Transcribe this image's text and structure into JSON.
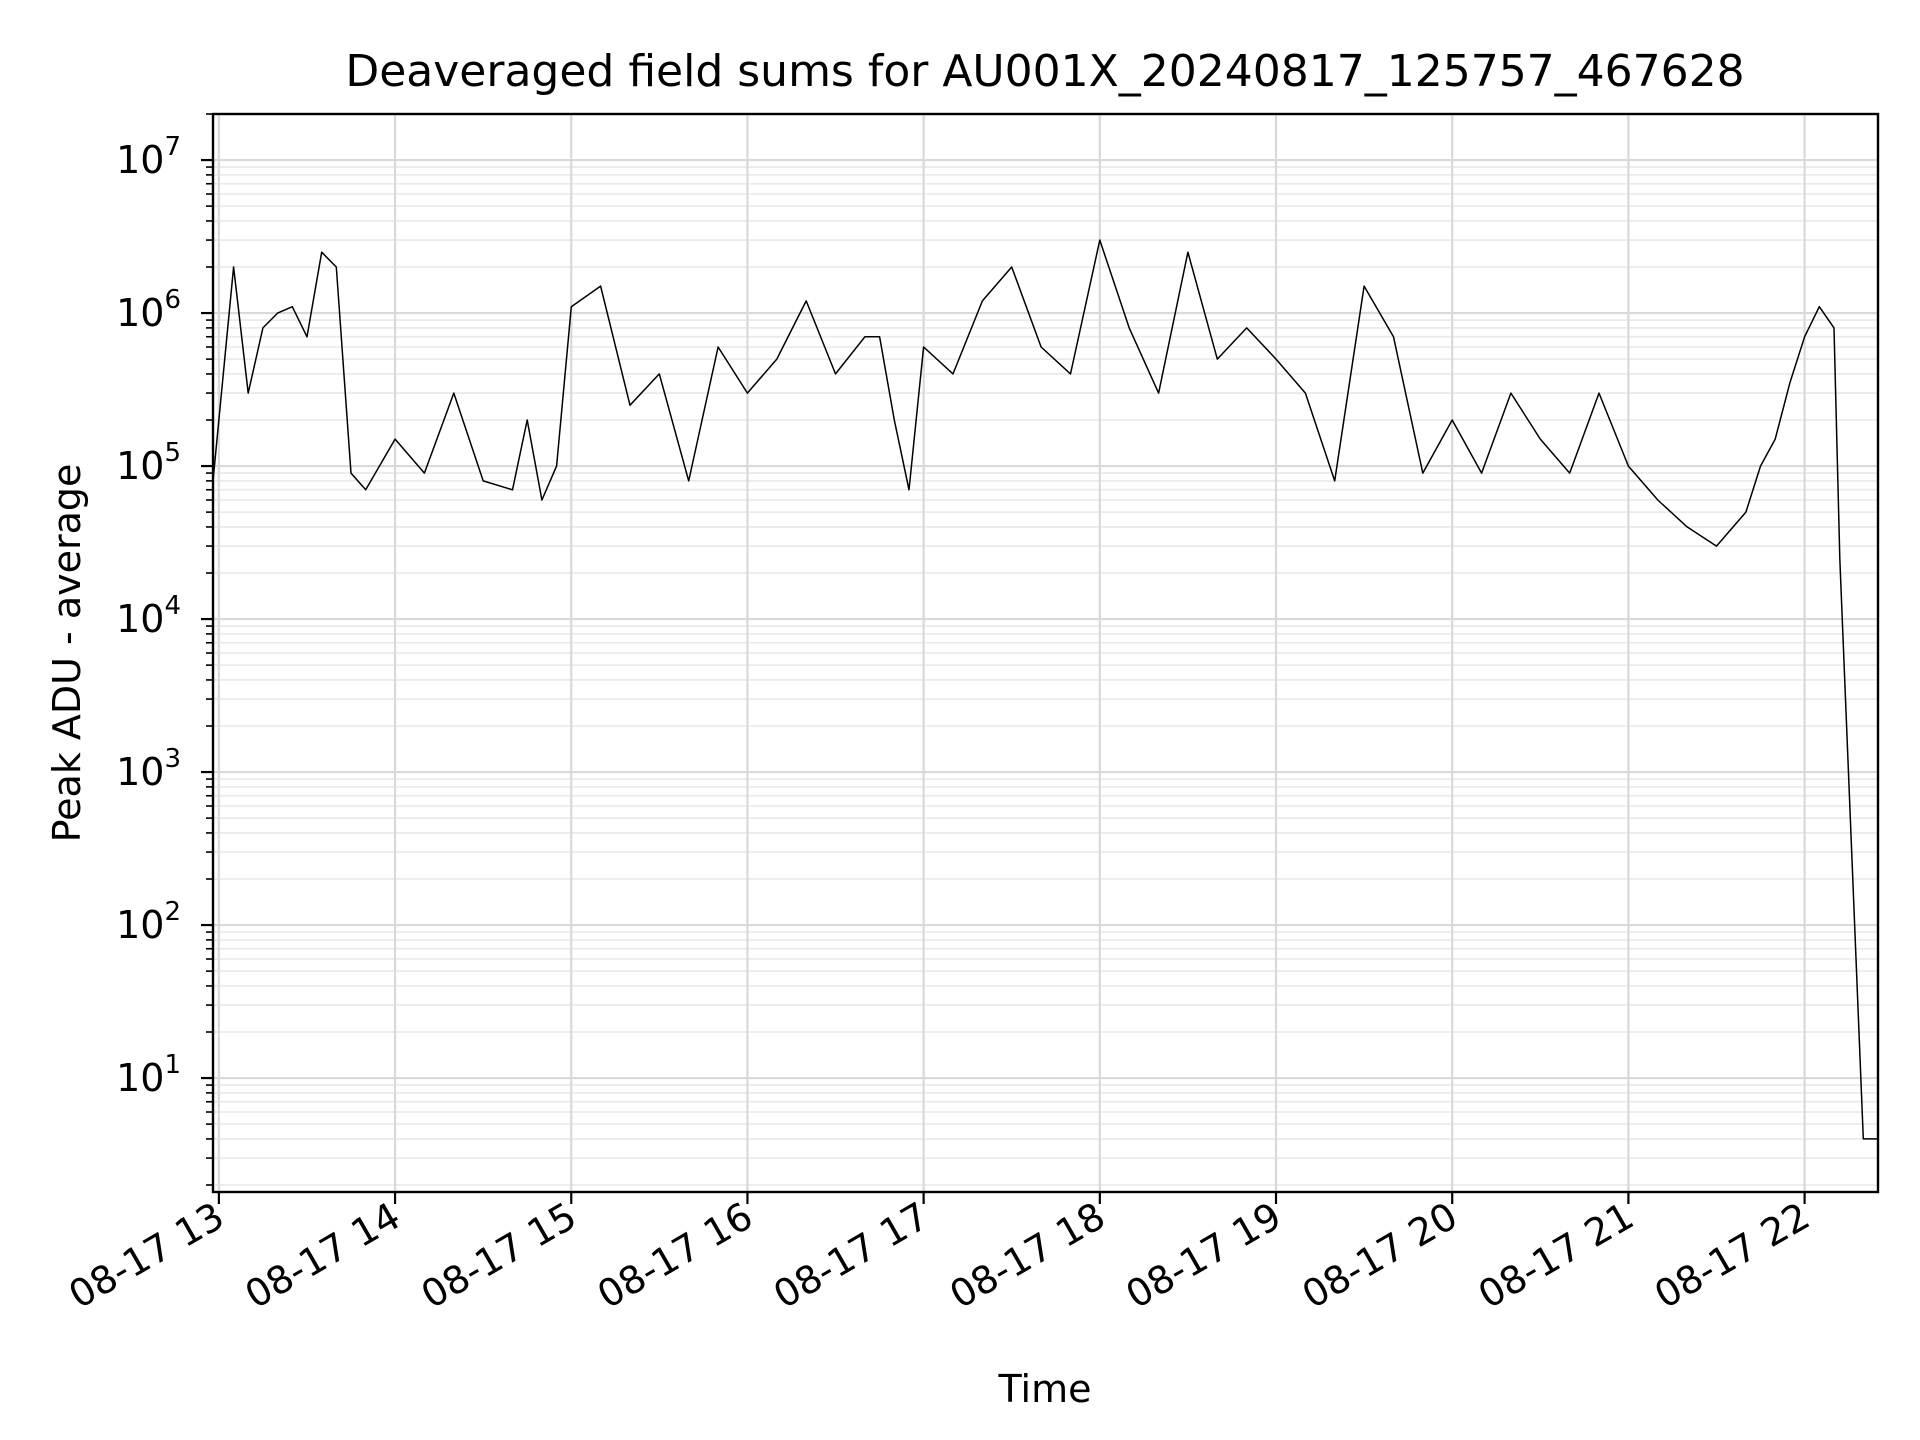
{
  "chart_data": {
    "type": "line",
    "title": "Deaveraged field sums for AU001X_20240817_125757_467628",
    "xlabel": "Time",
    "ylabel": "Peak ADU - average",
    "yscale": "log",
    "ylim": [
      1.8,
      20000000
    ],
    "xlim": [
      "2024-08-17 12:58",
      "2024-08-17 22:25"
    ],
    "grid": "both (major and minor)",
    "x_ticks": [
      {
        "value": "2024-08-17 13:00",
        "label": "08-17 13"
      },
      {
        "value": "2024-08-17 14:00",
        "label": "08-17 14"
      },
      {
        "value": "2024-08-17 15:00",
        "label": "08-17 15"
      },
      {
        "value": "2024-08-17 16:00",
        "label": "08-17 16"
      },
      {
        "value": "2024-08-17 17:00",
        "label": "08-17 17"
      },
      {
        "value": "2024-08-17 18:00",
        "label": "08-17 18"
      },
      {
        "value": "2024-08-17 19:00",
        "label": "08-17 19"
      },
      {
        "value": "2024-08-17 20:00",
        "label": "08-17 20"
      },
      {
        "value": "2024-08-17 21:00",
        "label": "08-17 21"
      },
      {
        "value": "2024-08-17 22:00",
        "label": "08-17 22"
      }
    ],
    "y_ticks": [
      {
        "value": 10,
        "base": "10",
        "exp": "1"
      },
      {
        "value": 100,
        "base": "10",
        "exp": "2"
      },
      {
        "value": 1000,
        "base": "10",
        "exp": "3"
      },
      {
        "value": 10000,
        "base": "10",
        "exp": "4"
      },
      {
        "value": 100000,
        "base": "10",
        "exp": "5"
      },
      {
        "value": 1000000,
        "base": "10",
        "exp": "6"
      },
      {
        "value": 10000000,
        "base": "10",
        "exp": "7"
      }
    ],
    "series": [
      {
        "color": "#000000",
        "x": [
          "2024-08-17 12:58",
          "2024-08-17 13:05",
          "2024-08-17 13:10",
          "2024-08-17 13:15",
          "2024-08-17 13:20",
          "2024-08-17 13:25",
          "2024-08-17 13:30",
          "2024-08-17 13:35",
          "2024-08-17 13:40",
          "2024-08-17 13:45",
          "2024-08-17 13:50",
          "2024-08-17 14:00",
          "2024-08-17 14:10",
          "2024-08-17 14:20",
          "2024-08-17 14:30",
          "2024-08-17 14:40",
          "2024-08-17 14:45",
          "2024-08-17 14:50",
          "2024-08-17 14:55",
          "2024-08-17 15:00",
          "2024-08-17 15:10",
          "2024-08-17 15:20",
          "2024-08-17 15:30",
          "2024-08-17 15:40",
          "2024-08-17 15:50",
          "2024-08-17 16:00",
          "2024-08-17 16:10",
          "2024-08-17 16:20",
          "2024-08-17 16:30",
          "2024-08-17 16:40",
          "2024-08-17 16:45",
          "2024-08-17 16:50",
          "2024-08-17 16:55",
          "2024-08-17 17:00",
          "2024-08-17 17:10",
          "2024-08-17 17:20",
          "2024-08-17 17:30",
          "2024-08-17 17:40",
          "2024-08-17 17:50",
          "2024-08-17 18:00",
          "2024-08-17 18:10",
          "2024-08-17 18:20",
          "2024-08-17 18:30",
          "2024-08-17 18:40",
          "2024-08-17 18:50",
          "2024-08-17 19:00",
          "2024-08-17 19:10",
          "2024-08-17 19:20",
          "2024-08-17 19:30",
          "2024-08-17 19:40",
          "2024-08-17 19:50",
          "2024-08-17 20:00",
          "2024-08-17 20:10",
          "2024-08-17 20:20",
          "2024-08-17 20:30",
          "2024-08-17 20:40",
          "2024-08-17 20:50",
          "2024-08-17 21:00",
          "2024-08-17 21:10",
          "2024-08-17 21:20",
          "2024-08-17 21:30",
          "2024-08-17 21:40",
          "2024-08-17 21:45",
          "2024-08-17 21:50",
          "2024-08-17 21:55",
          "2024-08-17 22:00",
          "2024-08-17 22:05",
          "2024-08-17 22:10",
          "2024-08-17 22:12",
          "2024-08-17 22:20",
          "2024-08-17 22:25"
        ],
        "y": [
          80000,
          2000000,
          300000,
          800000,
          1000000,
          1100000,
          700000,
          2500000,
          2000000,
          90000,
          70000,
          150000,
          90000,
          300000,
          80000,
          70000,
          200000,
          60000,
          100000,
          1100000,
          1500000,
          250000,
          400000,
          80000,
          600000,
          300000,
          500000,
          1200000,
          400000,
          700000,
          700000,
          200000,
          70000,
          600000,
          400000,
          1200000,
          2000000,
          600000,
          400000,
          3000000,
          800000,
          300000,
          2500000,
          500000,
          800000,
          500000,
          300000,
          80000,
          1500000,
          700000,
          90000,
          200000,
          90000,
          300000,
          150000,
          90000,
          300000,
          100000,
          60000,
          40000,
          30000,
          50000,
          100000,
          150000,
          350000,
          700000,
          1100000,
          800000,
          25000,
          4,
          4
        ]
      }
    ]
  }
}
